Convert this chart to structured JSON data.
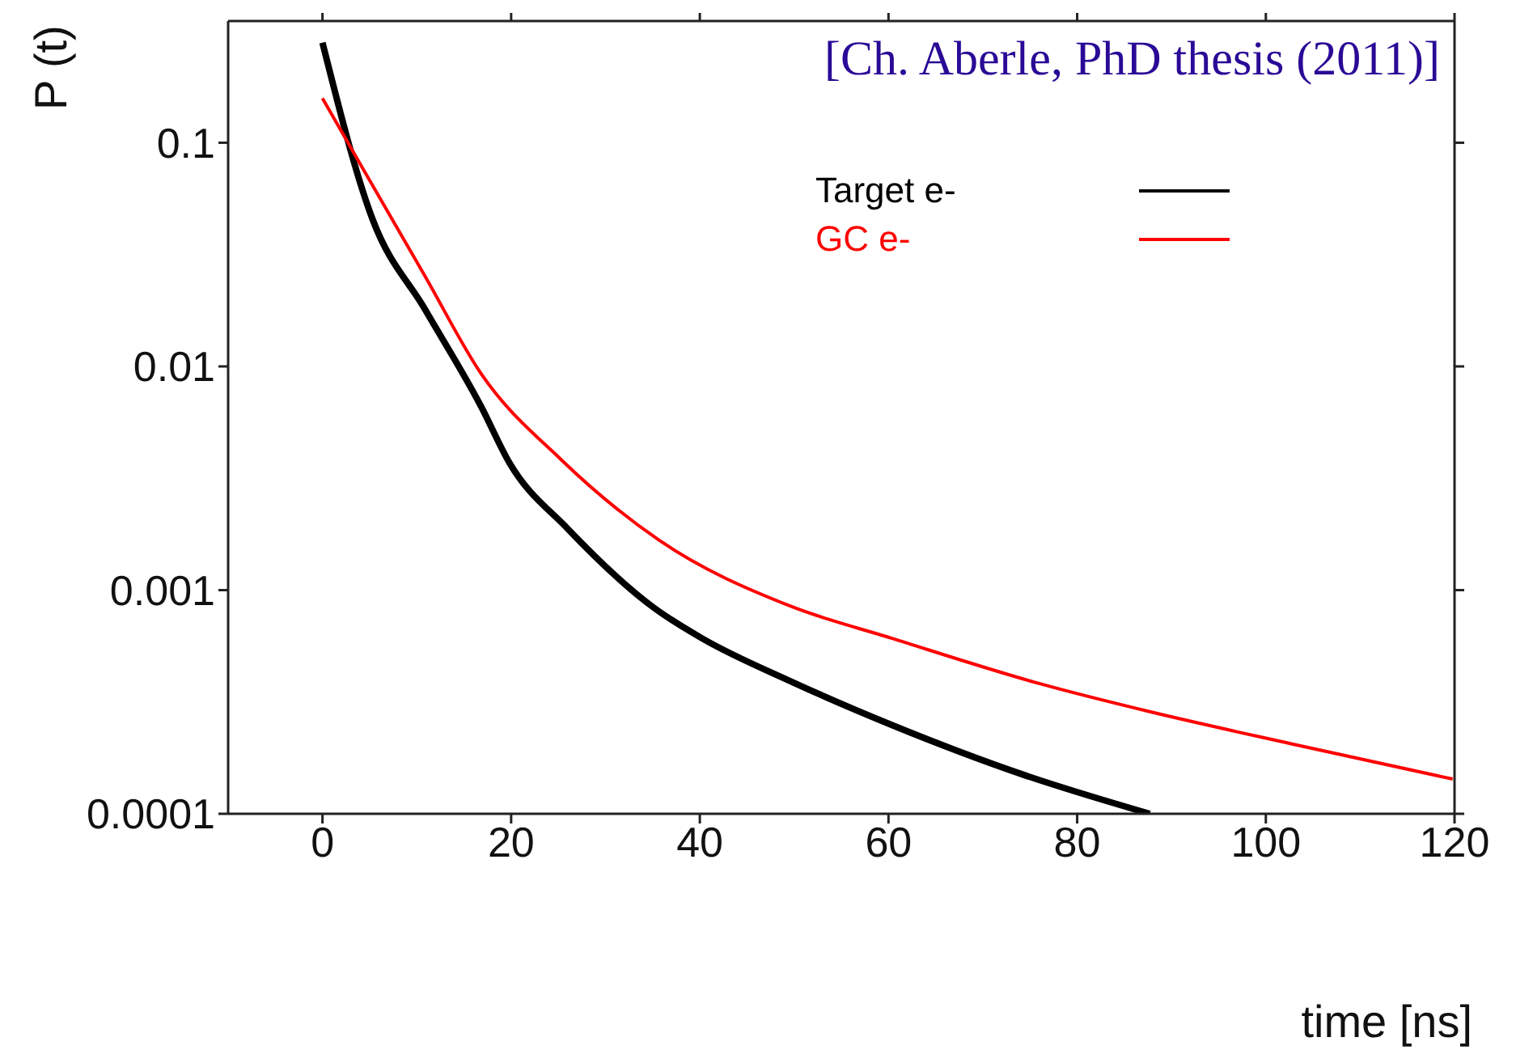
{
  "chart_data": {
    "type": "line",
    "xlabel": "time [ns]",
    "ylabel": "P (t)",
    "annotations": [
      "[Ch. Aberle, PhD thesis (2011)]"
    ],
    "series": [
      {
        "name": "Target e-",
        "color": "#000000",
        "x": [
          0,
          5.3,
          10.9,
          16.8,
          19.8,
          26,
          35.2,
          40.2,
          49.7,
          60.3,
          74.4,
          87.7
        ],
        "values": [
          0.28,
          0.0456,
          0.0179,
          0.00664,
          0.00372,
          0.00188,
          0.00083,
          0.00061,
          0.00039,
          0.00025,
          0.000149,
          0.0001
        ]
      },
      {
        "name": "GC e-",
        "color": "#ff0000",
        "x": [
          0,
          4.1,
          10.9,
          16.8,
          25.3,
          35.7,
          49.7,
          60.3,
          76.2,
          87.7,
          102.6,
          119.8
        ],
        "values": [
          0.158,
          0.079,
          0.0252,
          0.0093,
          0.00383,
          0.00167,
          0.000845,
          0.00061,
          0.00038,
          0.000286,
          0.000206,
          0.000143
        ]
      }
    ],
    "xlim": [
      -10,
      120
    ],
    "xticks": [
      0,
      20,
      40,
      60,
      80,
      100,
      120
    ],
    "ylim": [
      0.0001,
      0.35
    ],
    "yticks": [
      0.0001,
      0.001,
      0.01,
      0.1
    ],
    "log": "y",
    "grid": false,
    "legend": "top right",
    "marker": "none",
    "line_style": "solid"
  }
}
